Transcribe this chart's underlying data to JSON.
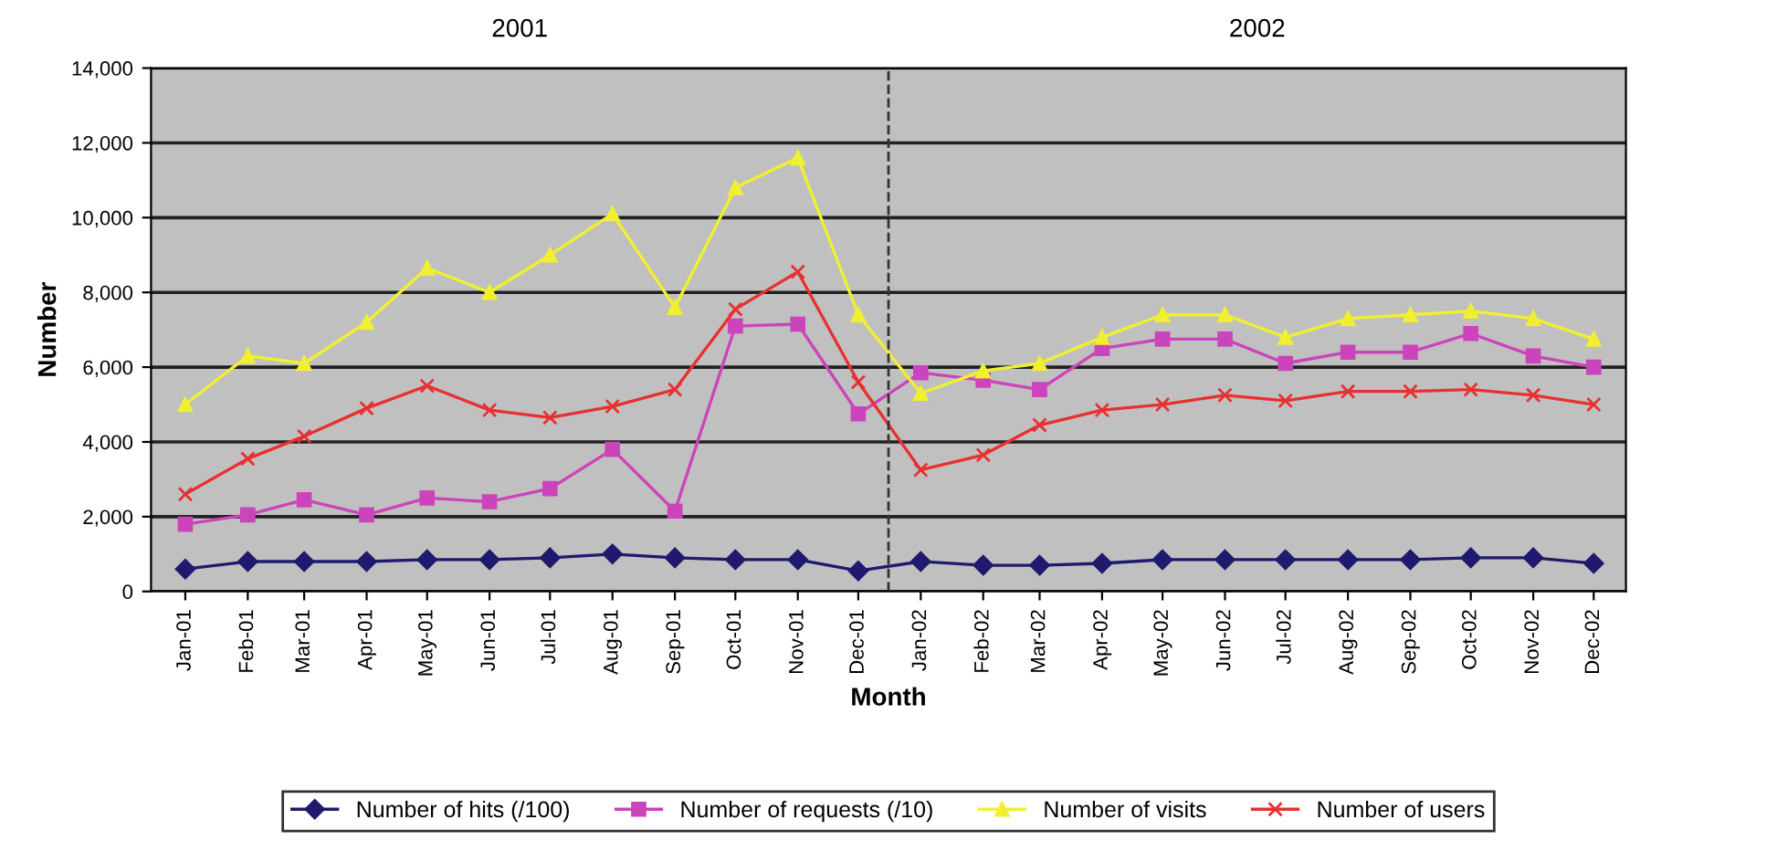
{
  "chart_data": {
    "type": "line",
    "xlabel": "Month",
    "ylabel": "Number",
    "annotations": [
      "2001",
      "2002"
    ],
    "x": [
      "2001-01",
      "2001-02",
      "2001-03",
      "2001-04",
      "2001-05",
      "2001-06",
      "2001-07",
      "2001-08",
      "2001-09",
      "2001-10",
      "2001-11",
      "2001-12",
      "2002-01",
      "2002-02",
      "2002-03",
      "2002-04",
      "2002-05",
      "2002-06",
      "2002-07",
      "2002-08",
      "2002-09",
      "2002-10",
      "2002-11",
      "2002-12"
    ],
    "xlim": [
      "2000-12-15",
      "2002-12-17"
    ],
    "xticks": [
      {
        "value": "2001-01",
        "label": "Jan-01"
      },
      {
        "value": "2001-02",
        "label": "Feb-01"
      },
      {
        "value": "2001-03",
        "label": "Mar-01"
      },
      {
        "value": "2001-04",
        "label": "Apr-01"
      },
      {
        "value": "2001-05",
        "label": "May-01"
      },
      {
        "value": "2001-06",
        "label": "Jun-01"
      },
      {
        "value": "2001-07",
        "label": "Jul-01"
      },
      {
        "value": "2001-08",
        "label": "Aug-01"
      },
      {
        "value": "2001-09",
        "label": "Sep-01"
      },
      {
        "value": "2001-10",
        "label": "Oct-01"
      },
      {
        "value": "2001-11",
        "label": "Nov-01"
      },
      {
        "value": "2001-12",
        "label": "Dec-01"
      },
      {
        "value": "2002-01",
        "label": "Jan-02"
      },
      {
        "value": "2002-02",
        "label": "Feb-02"
      },
      {
        "value": "2002-03",
        "label": "Mar-02"
      },
      {
        "value": "2002-04",
        "label": "Apr-02"
      },
      {
        "value": "2002-05",
        "label": "May-02"
      },
      {
        "value": "2002-06",
        "label": "Jun-02"
      },
      {
        "value": "2002-07",
        "label": "Jul-02"
      },
      {
        "value": "2002-08",
        "label": "Aug-02"
      },
      {
        "value": "2002-09",
        "label": "Sep-02"
      },
      {
        "value": "2002-10",
        "label": "Oct-02"
      },
      {
        "value": "2002-11",
        "label": "Nov-02"
      },
      {
        "value": "2002-12",
        "label": "Dec-02"
      }
    ],
    "ylim": [
      0,
      14000
    ],
    "yticks": [
      {
        "value": 0,
        "label": "0"
      },
      {
        "value": 2000,
        "label": "2,000"
      },
      {
        "value": 4000,
        "label": "4,000"
      },
      {
        "value": 6000,
        "label": "6,000"
      },
      {
        "value": 8000,
        "label": "8,000"
      },
      {
        "value": 10000,
        "label": "10,000"
      },
      {
        "value": 12000,
        "label": "12,000"
      },
      {
        "value": 14000,
        "label": "14,000"
      }
    ],
    "grid": "y",
    "legend": "bottom",
    "ref_lines": [
      {
        "axis": "x",
        "value": "2001-12-16",
        "line_style": "dashed",
        "color": "#333333"
      }
    ],
    "series": [
      {
        "name": "Number of hits (/100)",
        "color": "#1f1a6e",
        "marker": "diamond",
        "values": [
          600,
          800,
          800,
          800,
          850,
          850,
          900,
          1000,
          900,
          850,
          850,
          550,
          800,
          700,
          700,
          750,
          850,
          850,
          850,
          850,
          850,
          900,
          900,
          750
        ]
      },
      {
        "name": "Number of requests (/10)",
        "color": "#cc44bb",
        "marker": "square",
        "values": [
          1800,
          2050,
          2450,
          2050,
          2500,
          2400,
          2750,
          3800,
          2150,
          7100,
          7150,
          4750,
          5850,
          5650,
          5400,
          6500,
          6750,
          6750,
          6100,
          6400,
          6400,
          6900,
          6300,
          6000
        ]
      },
      {
        "name": "Number of visits",
        "color": "#f0f030",
        "marker": "triangle",
        "values": [
          5000,
          6300,
          6100,
          7200,
          8650,
          8000,
          9000,
          10100,
          7600,
          10800,
          11600,
          7400,
          5300,
          5900,
          6100,
          6800,
          7400,
          7400,
          6800,
          7300,
          7400,
          7500,
          7300,
          6750
        ]
      },
      {
        "name": "Number of users",
        "color": "#e83030",
        "marker": "cross",
        "values": [
          2600,
          3550,
          4150,
          4900,
          5500,
          4850,
          4650,
          4950,
          5400,
          7550,
          8550,
          5600,
          3250,
          3650,
          4450,
          4850,
          5000,
          5250,
          5100,
          5350,
          5350,
          5400,
          5250,
          5000
        ]
      }
    ]
  }
}
